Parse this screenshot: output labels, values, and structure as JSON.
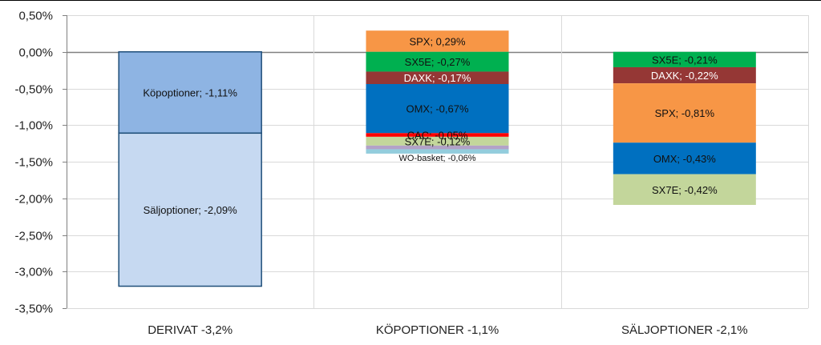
{
  "chart_data": {
    "type": "bar",
    "stacked": true,
    "grid": true,
    "ylim": [
      -3.5,
      0.5
    ],
    "y_ticks": [
      0.5,
      0.0,
      -0.5,
      -1.0,
      -1.5,
      -2.0,
      -2.5,
      -3.0,
      -3.5
    ],
    "y_tick_labels": [
      "0,50%",
      "0,00%",
      "-0,50%",
      "-1,00%",
      "-1,50%",
      "-2,00%",
      "-2,50%",
      "-3,00%",
      "-3,50%"
    ],
    "categories": [
      "DERIVAT -3,2%",
      "KÖPOPTIONER -1,1%",
      "SÄLJOPTIONER -2,1%"
    ],
    "segments": [
      [
        {
          "label": "Köpoptioner; -1,11%",
          "value": -1.11,
          "color": "#8eb4e3",
          "border": "#1f4e79"
        },
        {
          "label": "Säljoptioner; -2,09%",
          "value": -2.09,
          "color": "#c6d9f1",
          "border": "#1f4e79"
        }
      ],
      [
        {
          "label": "SPX; 0,29%",
          "value": 0.29,
          "color": "#f79646"
        },
        {
          "label": "SX5E; -0,27%",
          "value": -0.27,
          "color": "#00b050"
        },
        {
          "label": "DAXK; -0,17%",
          "value": -0.17,
          "color": "#953735",
          "text": "light"
        },
        {
          "label": "OMX; -0,67%",
          "value": -0.67,
          "color": "#0070c0"
        },
        {
          "label": "CAC; -0,05%",
          "value": -0.05,
          "color": "#ff0000"
        },
        {
          "label": "SX7E; -0,12%",
          "value": -0.12,
          "color": "#c3d69b"
        },
        {
          "label": "",
          "value": -0.05,
          "color": "#b3a2c7"
        },
        {
          "label": "WO-basket; -0,06%",
          "value": -0.06,
          "color": "#93cddd",
          "text": "small-below"
        }
      ],
      [
        {
          "label": "SX5E; -0,21%",
          "value": -0.21,
          "color": "#00b050"
        },
        {
          "label": "DAXK; -0,22%",
          "value": -0.22,
          "color": "#953735",
          "text": "light"
        },
        {
          "label": "SPX; -0,81%",
          "value": -0.81,
          "color": "#f79646"
        },
        {
          "label": "OMX; -0,43%",
          "value": -0.43,
          "color": "#0070c0"
        },
        {
          "label": "SX7E; -0,42%",
          "value": -0.42,
          "color": "#c3d69b"
        }
      ]
    ]
  }
}
